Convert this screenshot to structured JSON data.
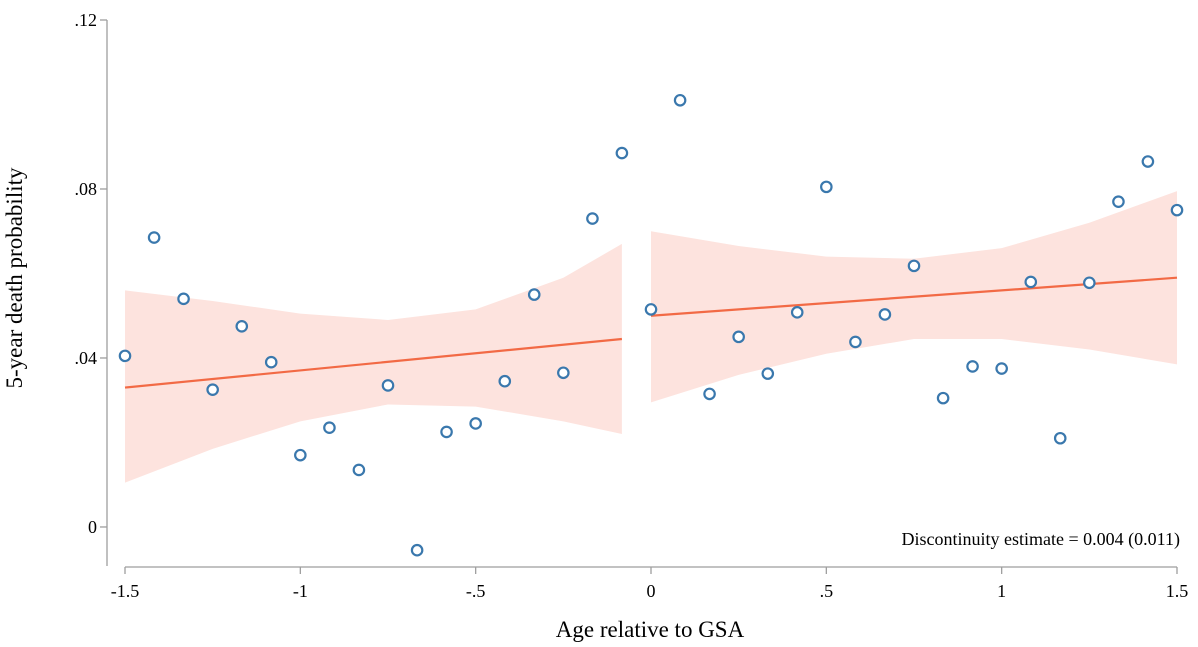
{
  "chart_data": {
    "type": "scatter",
    "xlabel": "Age relative to GSA",
    "ylabel": "5-year death probability",
    "xlim": [
      -1.5,
      1.5
    ],
    "ylim": [
      -0.009,
      0.12
    ],
    "x_ticks": [
      {
        "value": -1.5,
        "label": "-1.5"
      },
      {
        "value": -1,
        "label": "-1"
      },
      {
        "value": -0.5,
        "label": "-.5"
      },
      {
        "value": 0,
        "label": "0"
      },
      {
        "value": 0.5,
        "label": ".5"
      },
      {
        "value": 1,
        "label": "1"
      },
      {
        "value": 1.5,
        "label": "1.5"
      }
    ],
    "y_ticks": [
      {
        "value": 0,
        "label": "0"
      },
      {
        "value": 0.04,
        "label": ".04"
      },
      {
        "value": 0.08,
        "label": ".08"
      },
      {
        "value": 0.12,
        "label": ".12"
      }
    ],
    "grid": false,
    "annotation": "Discontinuity estimate = 0.004 (0.011)",
    "colors": {
      "points": "#3a78ad",
      "fit_line": "#f26a45",
      "ci_band": "#fde3de",
      "axis": "#9e9e9e"
    },
    "scatter": [
      {
        "x": -1.5,
        "y": 0.0405
      },
      {
        "x": -1.417,
        "y": 0.0685
      },
      {
        "x": -1.333,
        "y": 0.054
      },
      {
        "x": -1.25,
        "y": 0.0325
      },
      {
        "x": -1.167,
        "y": 0.0475
      },
      {
        "x": -1.083,
        "y": 0.039
      },
      {
        "x": -1.0,
        "y": 0.017
      },
      {
        "x": -0.917,
        "y": 0.0235
      },
      {
        "x": -0.833,
        "y": 0.0135
      },
      {
        "x": -0.75,
        "y": 0.0335
      },
      {
        "x": -0.667,
        "y": -0.0055
      },
      {
        "x": -0.583,
        "y": 0.0225
      },
      {
        "x": -0.5,
        "y": 0.0245
      },
      {
        "x": -0.417,
        "y": 0.0345
      },
      {
        "x": -0.333,
        "y": 0.055
      },
      {
        "x": -0.25,
        "y": 0.0365
      },
      {
        "x": -0.167,
        "y": 0.073
      },
      {
        "x": -0.083,
        "y": 0.0885
      },
      {
        "x": 0.0,
        "y": 0.0515
      },
      {
        "x": 0.083,
        "y": 0.101
      },
      {
        "x": 0.167,
        "y": 0.0315
      },
      {
        "x": 0.25,
        "y": 0.045
      },
      {
        "x": 0.333,
        "y": 0.0363
      },
      {
        "x": 0.417,
        "y": 0.0508
      },
      {
        "x": 0.5,
        "y": 0.0805
      },
      {
        "x": 0.583,
        "y": 0.0438
      },
      {
        "x": 0.667,
        "y": 0.0503
      },
      {
        "x": 0.75,
        "y": 0.0618
      },
      {
        "x": 0.833,
        "y": 0.0305
      },
      {
        "x": 0.917,
        "y": 0.038
      },
      {
        "x": 1.0,
        "y": 0.0375
      },
      {
        "x": 1.083,
        "y": 0.058
      },
      {
        "x": 1.167,
        "y": 0.021
      },
      {
        "x": 1.25,
        "y": 0.0578
      },
      {
        "x": 1.333,
        "y": 0.077
      },
      {
        "x": 1.417,
        "y": 0.0865
      },
      {
        "x": 1.5,
        "y": 0.075
      }
    ],
    "fits": [
      {
        "segment": "left",
        "line": [
          {
            "x": -1.5,
            "y": 0.033
          },
          {
            "x": -0.083,
            "y": 0.0445
          }
        ],
        "ci_upper": [
          {
            "x": -1.5,
            "y": 0.056
          },
          {
            "x": -1.25,
            "y": 0.0535
          },
          {
            "x": -1.0,
            "y": 0.0505
          },
          {
            "x": -0.75,
            "y": 0.049
          },
          {
            "x": -0.5,
            "y": 0.0515
          },
          {
            "x": -0.25,
            "y": 0.059
          },
          {
            "x": -0.083,
            "y": 0.067
          }
        ],
        "ci_lower": [
          {
            "x": -1.5,
            "y": 0.0105
          },
          {
            "x": -1.25,
            "y": 0.0185
          },
          {
            "x": -1.0,
            "y": 0.025
          },
          {
            "x": -0.75,
            "y": 0.029
          },
          {
            "x": -0.5,
            "y": 0.0285
          },
          {
            "x": -0.25,
            "y": 0.025
          },
          {
            "x": -0.083,
            "y": 0.022
          }
        ]
      },
      {
        "segment": "right",
        "line": [
          {
            "x": 0.0,
            "y": 0.05
          },
          {
            "x": 1.5,
            "y": 0.059
          }
        ],
        "ci_upper": [
          {
            "x": 0.0,
            "y": 0.07
          },
          {
            "x": 0.25,
            "y": 0.0665
          },
          {
            "x": 0.5,
            "y": 0.064
          },
          {
            "x": 0.75,
            "y": 0.0635
          },
          {
            "x": 1.0,
            "y": 0.066
          },
          {
            "x": 1.25,
            "y": 0.072
          },
          {
            "x": 1.5,
            "y": 0.0795
          }
        ],
        "ci_lower": [
          {
            "x": 0.0,
            "y": 0.0295
          },
          {
            "x": 0.25,
            "y": 0.036
          },
          {
            "x": 0.5,
            "y": 0.041
          },
          {
            "x": 0.75,
            "y": 0.0445
          },
          {
            "x": 1.0,
            "y": 0.0445
          },
          {
            "x": 1.25,
            "y": 0.042
          },
          {
            "x": 1.5,
            "y": 0.0385
          }
        ]
      }
    ]
  }
}
